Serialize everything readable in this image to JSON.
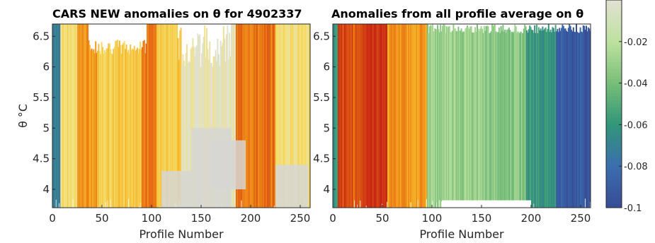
{
  "chart_data": [
    {
      "type": "heatmap",
      "title": "CARS NEW anomalies on θ for 4902337",
      "xlabel": "Profile Number",
      "ylabel": "θ °C",
      "xlim": [
        0,
        260
      ],
      "ylim": [
        3.7,
        6.7
      ],
      "xticks": [
        "0",
        "50",
        "100",
        "150",
        "200",
        "250"
      ],
      "yticks": [
        "4",
        "4.5",
        "5",
        "5.5",
        "6",
        "6.5"
      ],
      "profile_bands": [
        {
          "x0": 0,
          "x1": 8,
          "value": -0.07
        },
        {
          "x0": 8,
          "x1": 25,
          "value": 0.02
        },
        {
          "x0": 25,
          "x1": 45,
          "value": 0.05
        },
        {
          "x0": 45,
          "x1": 90,
          "value": 0.03
        },
        {
          "x0": 90,
          "x1": 105,
          "value": 0.06
        },
        {
          "x0": 105,
          "x1": 130,
          "value": 0.03
        },
        {
          "x0": 130,
          "x1": 185,
          "value": 0.005
        },
        {
          "x0": 185,
          "x1": 225,
          "value": 0.06
        },
        {
          "x0": 225,
          "x1": 260,
          "value": 0.02
        }
      ]
    },
    {
      "type": "heatmap",
      "title": "Anomalies from all profile average on θ",
      "xlabel": "Profile Number",
      "xlim": [
        0,
        260
      ],
      "ylim": [
        3.7,
        6.7
      ],
      "xticks": [
        "0",
        "50",
        "100",
        "150",
        "200",
        "250"
      ],
      "yticks": [
        "4",
        "4.5",
        "5",
        "5.5",
        "6",
        "6.5"
      ],
      "profile_bands": [
        {
          "x0": 0,
          "x1": 5,
          "value": -0.06
        },
        {
          "x0": 5,
          "x1": 30,
          "value": 0.07
        },
        {
          "x0": 30,
          "x1": 55,
          "value": 0.08
        },
        {
          "x0": 55,
          "x1": 95,
          "value": 0.05
        },
        {
          "x0": 95,
          "x1": 150,
          "value": -0.03
        },
        {
          "x0": 150,
          "x1": 195,
          "value": -0.035
        },
        {
          "x0": 195,
          "x1": 225,
          "value": -0.06
        },
        {
          "x0": 225,
          "x1": 260,
          "value": -0.09
        }
      ]
    }
  ],
  "colorbar": {
    "ticks": [
      "-0.02",
      "-0.04",
      "-0.06",
      "-0.08",
      "-0.1"
    ],
    "range": [
      -0.1,
      0
    ]
  }
}
